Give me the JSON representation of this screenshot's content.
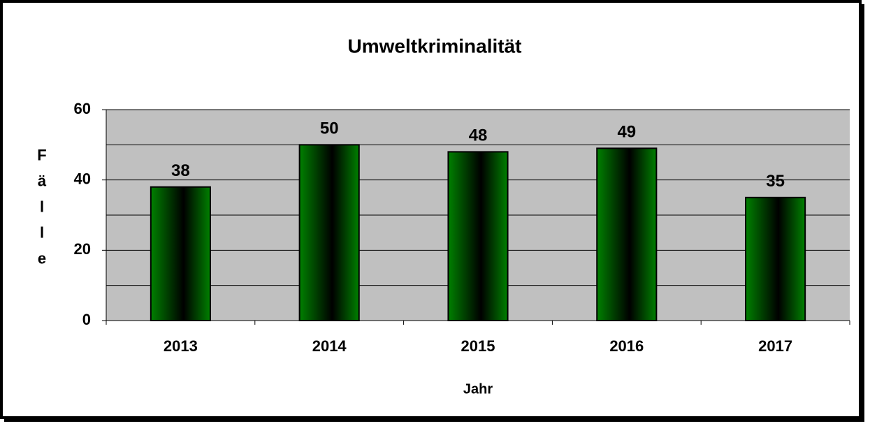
{
  "chart_data": {
    "type": "bar",
    "title": "Umweltkriminalität",
    "x_label": "Jahr",
    "y_label": "Fälle",
    "categories": [
      "2013",
      "2014",
      "2015",
      "2016",
      "2017"
    ],
    "values": [
      38,
      50,
      48,
      49,
      35
    ],
    "color": "#008000",
    "ylim": [
      0,
      60
    ],
    "yticks": [
      0,
      20,
      40,
      60
    ],
    "minor_yticks": [
      10,
      30,
      50
    ],
    "grid": true
  }
}
